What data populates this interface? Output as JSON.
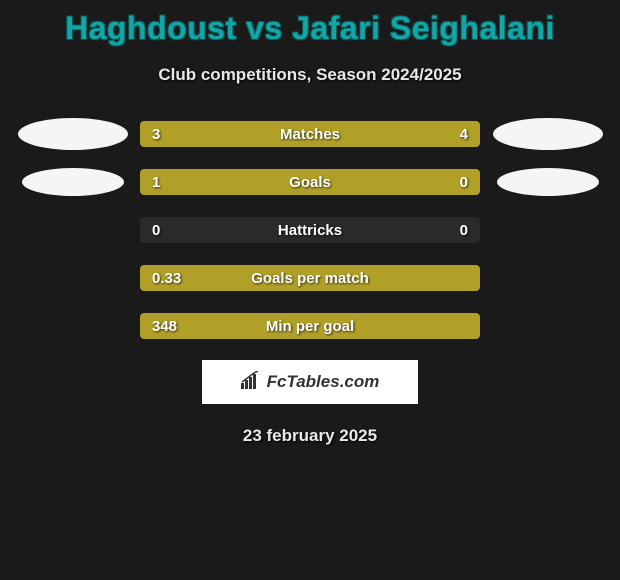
{
  "title": "Haghdoust vs Jafari Seighalani",
  "subtitle": "Club competitions, Season 2024/2025",
  "date": "23 february 2025",
  "brand": "FcTables.com",
  "colors": {
    "title": "#14a6a6",
    "bar_fill": "#b0a028",
    "bar_bg": "#2a2a2a",
    "page_bg": "#1a1a1a",
    "text": "#e8e8e8"
  },
  "stats": [
    {
      "label": "Matches",
      "left_value": "3",
      "right_value": "4",
      "left_pct": 40,
      "right_pct": 60,
      "show_avatars": true,
      "avatar_large": true
    },
    {
      "label": "Goals",
      "left_value": "1",
      "right_value": "0",
      "left_pct": 77,
      "right_pct": 23,
      "show_avatars": true,
      "avatar_large": false
    },
    {
      "label": "Hattricks",
      "left_value": "0",
      "right_value": "0",
      "left_pct": 0,
      "right_pct": 0,
      "show_avatars": false
    },
    {
      "label": "Goals per match",
      "left_value": "0.33",
      "right_value": "",
      "left_pct": 100,
      "right_pct": 0,
      "show_avatars": false
    },
    {
      "label": "Min per goal",
      "left_value": "348",
      "right_value": "",
      "left_pct": 100,
      "right_pct": 0,
      "show_avatars": false
    }
  ]
}
